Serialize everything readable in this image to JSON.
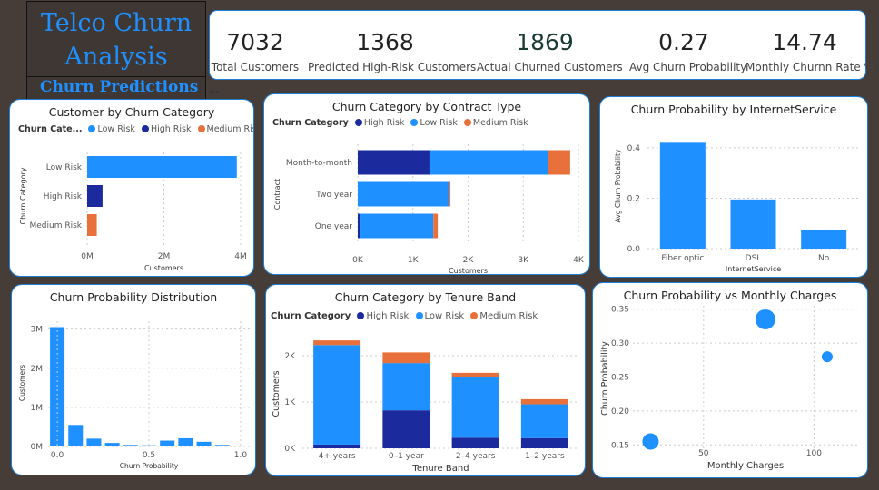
{
  "header": {
    "title_line1": "Telco Churn",
    "title_line2": "Analysis",
    "subtitle": "Churn Predictions",
    "more": "..."
  },
  "kpis": [
    {
      "value": "7032",
      "label": "Total Customers"
    },
    {
      "value": "1368",
      "label": "Predicted High-Risk Customers"
    },
    {
      "value": "1869",
      "label": "Actual Churned Customers"
    },
    {
      "value": "0.27",
      "label": "Avg Churn Probability"
    },
    {
      "value": "14.74",
      "label": "Monthly Churnn Rate %"
    }
  ],
  "colors": {
    "low": "#1e90ff",
    "high": "#1b2a9c",
    "medium": "#e8703a"
  },
  "legend_category": {
    "title_short": "Churn Cate...",
    "title": "Churn Category",
    "low": "Low Risk",
    "high": "High Risk",
    "medium": "Medium Risk"
  },
  "chart_data": [
    {
      "id": "customer_by_category",
      "type": "bar",
      "orientation": "horizontal",
      "title": "Customer by Churn Category",
      "categories": [
        "Low Risk",
        "High Risk",
        "Medium Risk"
      ],
      "values": [
        3900000,
        400000,
        250000
      ],
      "colors": [
        "#1e90ff",
        "#1b2a9c",
        "#e8703a"
      ],
      "xlabel": "Customers",
      "ylabel": "Churn Category",
      "xticks": [
        "0M",
        "2M",
        "4M"
      ],
      "xlim": [
        0,
        4000000
      ]
    },
    {
      "id": "category_by_contract",
      "type": "bar",
      "orientation": "horizontal",
      "stacked": true,
      "title": "Churn Category by Contract Type",
      "categories": [
        "Month-to-month",
        "Two year",
        "One year"
      ],
      "series": [
        {
          "name": "High Risk",
          "values": [
            1300,
            0,
            50
          ]
        },
        {
          "name": "Low Risk",
          "values": [
            2150,
            1650,
            1320
          ]
        },
        {
          "name": "Medium Risk",
          "values": [
            400,
            30,
            80
          ]
        }
      ],
      "xlabel": "Customers",
      "ylabel": "Contract",
      "xticks": [
        "0K",
        "1K",
        "2K",
        "3K",
        "4K"
      ],
      "xlim": [
        0,
        4000
      ]
    },
    {
      "id": "prob_by_internet",
      "type": "bar",
      "title": "Churn Probability by InternetService",
      "categories": [
        "Fiber optic",
        "DSL",
        "No"
      ],
      "values": [
        0.42,
        0.195,
        0.075
      ],
      "xlabel": "InternetService",
      "ylabel": "Avg Churn Probability",
      "yticks": [
        "0.0",
        "0.2",
        "0.4"
      ],
      "ylim": [
        0,
        0.45
      ]
    },
    {
      "id": "prob_distribution",
      "type": "bar",
      "title": "Churn Probability Distribution",
      "categories": [
        "0.0",
        "0.1",
        "0.2",
        "0.3",
        "0.4",
        "0.5",
        "0.6",
        "0.7",
        "0.8",
        "0.9",
        "1.0"
      ],
      "values": [
        3050000,
        550000,
        200000,
        90000,
        40000,
        30000,
        150000,
        210000,
        120000,
        40000,
        10000
      ],
      "xlabel": "Churn Probability",
      "ylabel": "Customers",
      "xticks": [
        "0.0",
        "0.5",
        "1.0"
      ],
      "yticks": [
        "0M",
        "1M",
        "2M",
        "3M"
      ],
      "ylim": [
        0,
        3200000
      ]
    },
    {
      "id": "category_by_tenure",
      "type": "bar",
      "stacked": true,
      "title": "Churn Category by Tenure Band",
      "categories": [
        "4+ years",
        "0–1 year",
        "2–4 years",
        "1–2 years"
      ],
      "series": [
        {
          "name": "High Risk",
          "values": [
            80,
            820,
            230,
            220
          ]
        },
        {
          "name": "Low Risk",
          "values": [
            2150,
            1020,
            1310,
            730
          ]
        },
        {
          "name": "Medium Risk",
          "values": [
            100,
            230,
            90,
            110
          ]
        }
      ],
      "xlabel": "Tenure Band",
      "ylabel": "Customers",
      "yticks": [
        "0K",
        "1K",
        "2K"
      ],
      "ylim": [
        0,
        2450
      ]
    },
    {
      "id": "prob_vs_charges",
      "type": "scatter",
      "title": "Churn Probability vs Monthly Charges",
      "points": [
        {
          "x": 26,
          "y": 0.155,
          "size": 9
        },
        {
          "x": 78,
          "y": 0.335,
          "size": 11
        },
        {
          "x": 106,
          "y": 0.28,
          "size": 6
        }
      ],
      "xlabel": "Monthly Charges",
      "ylabel": "Churn Probability",
      "xticks": [
        "50",
        "100"
      ],
      "yticks": [
        "0.15",
        "0.20",
        "0.25",
        "0.30",
        "0.35"
      ],
      "xlim": [
        18,
        120
      ],
      "ylim": [
        0.145,
        0.355
      ]
    }
  ]
}
